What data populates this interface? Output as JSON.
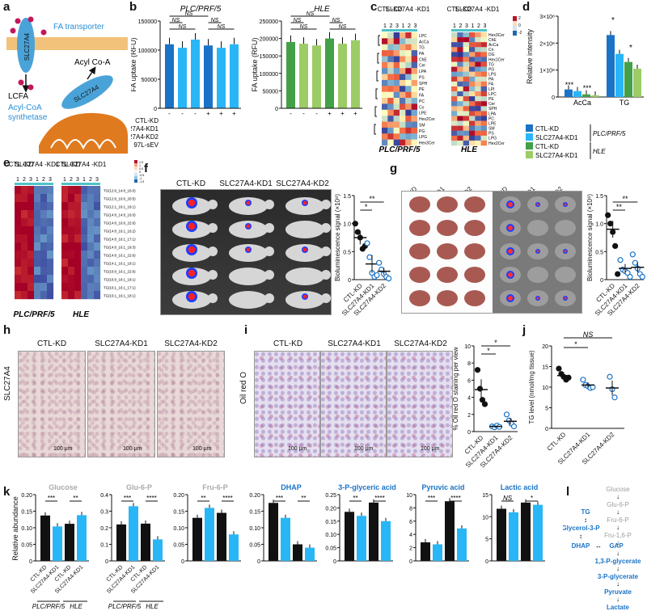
{
  "panel_labels": [
    "a",
    "b",
    "c",
    "d",
    "e",
    "f",
    "g",
    "h",
    "i",
    "j",
    "k",
    "l"
  ],
  "panel_a": {
    "fa_transporter": "FA transporter",
    "slc_top": "SLC27A4",
    "lcfa": "LCFA",
    "acyl_coa_synthetase": "Acyl-CoA synthetase",
    "slc_bottom": "SLC27A4",
    "acyl_coa": "Acyl Co-A",
    "colors": {
      "membrane": "#e8a64a",
      "protein": "#4aa3d8",
      "mito": "#e07a1f",
      "fa": "#c2185b"
    }
  },
  "sig": {
    "ns": "NS",
    "one": "*",
    "two": "**",
    "three": "***",
    "four": "****"
  },
  "panel_b": {
    "ylabel": "FA uptake (RFU)",
    "row_labels": [
      "CTL-KD",
      "SLC27A4-KD1",
      "SLC27A4-KD2",
      "97L-sEV"
    ],
    "sev": [
      "-",
      "-",
      "-",
      "+",
      "+",
      "+"
    ],
    "charts": [
      {
        "title": "PLC/PRF/5",
        "ylim": [
          0,
          150000
        ],
        "ticks": [
          "0",
          "50000",
          "100000",
          "150000"
        ],
        "values": [
          110000,
          104000,
          118000,
          108000,
          104000,
          110000
        ],
        "colors": [
          "#1a73c7",
          "#29b6f6",
          "#29b6f6",
          "#1a73c7",
          "#29b6f6",
          "#29b6f6"
        ]
      },
      {
        "title": "HLE",
        "ylim": [
          0,
          250000
        ],
        "ticks": [
          "0",
          "50000",
          "100000",
          "150000",
          "200000",
          "250000"
        ],
        "values": [
          190000,
          185000,
          180000,
          200000,
          185000,
          195000
        ],
        "colors": [
          "#43a047",
          "#9ccc65",
          "#9ccc65",
          "#43a047",
          "#9ccc65",
          "#9ccc65"
        ]
      }
    ]
  },
  "panel_c": {
    "col_left": "CTL -KD",
    "col_right": "SLC27A4 -KD1",
    "reps": [
      "1",
      "2",
      "3",
      "1",
      "2",
      "3"
    ],
    "left_cell": "PLC/PRF/5",
    "right_cell": "HLE",
    "left_rows": [
      "LPC",
      "AcCa",
      "TG",
      "PA",
      "ChE",
      "Cer",
      "LPA",
      "PS",
      "SPH",
      "PE",
      "FA",
      "PC",
      "Co",
      "LPE",
      "Hex2Cer",
      "SM",
      "PG",
      "LPG",
      "Hex3Cer"
    ],
    "right_rows": [
      "Hex3Cer",
      "ChE",
      "AcCa",
      "Cn",
      "DG",
      "Hex1Cer",
      "TG",
      "PG",
      "LPS",
      "PA",
      "FA",
      "LPI",
      "LPC",
      "PE",
      "Cer",
      "SPH",
      "LPA",
      "PC",
      "LPE",
      "SM",
      "PS",
      "LPG",
      "Hex2Cer"
    ],
    "scale": [
      "2",
      "0",
      "-2"
    ]
  },
  "panel_d": {
    "ylabel": "Relative intensity",
    "ticks": [
      "0",
      "1×10⁸",
      "2×10⁸",
      "3×10⁸"
    ],
    "groups": [
      "AcCa",
      "TG"
    ],
    "values": [
      [
        0.28,
        0.22,
        0.1,
        0.06
      ],
      [
        2.3,
        1.6,
        1.3,
        1.05
      ]
    ],
    "ylim": [
      0,
      3
    ],
    "colors": [
      "#1a73c7",
      "#29b6f6",
      "#43a047",
      "#9ccc65"
    ],
    "legend": [
      "CTL-KD",
      "SLC27A4-KD1",
      "CTL-KD",
      "SLC27A4-KD1"
    ],
    "legend_group1": "PLC/PRF/5",
    "legend_group2": "HLE"
  },
  "panel_e": {
    "col_left": "CTL -KD",
    "col_right": "SLC27A4 -KD1",
    "reps": [
      "1",
      "2",
      "3",
      "1",
      "2",
      "3"
    ],
    "rows": [
      "TG(12:0_14:0_16:0)",
      "TG(12:0_16:0_20:5)",
      "TG(12:1_16:1_18:1)",
      "TG(14:0_14:0_16:0)",
      "TG(14:0_16:0_22:6)",
      "TG(14:0_16:1_16:2)",
      "TG(14:0_16:1_17:1)",
      "TG(14:0_16:1_18:3)",
      "TG(14:0_16:1_22:6)",
      "TG(14:1_16:1_18:1)",
      "TG(16:0_16:1_22:6)",
      "TG(16:0_18:1_18:1)",
      "TG(16:1_16:1_17:1)",
      "TG(16:1_16:1_18:1)"
    ],
    "left_cell": "PLC/PRF/5",
    "right_cell": "HLE",
    "scale": [
      "1.5",
      "1",
      "0.5",
      "0",
      "-0.5",
      "-1",
      "-1.5"
    ]
  },
  "panel_f": {
    "groups": [
      "CTL-KD",
      "SLC27A4-KD1",
      "SLC27A4-KD2"
    ],
    "ylabel": "Bioluminescence signal (×10⁸)",
    "ticks": [
      "0",
      "0.5",
      "1.0",
      "1.5"
    ],
    "ylim": [
      0,
      1.5
    ],
    "means": [
      0.75,
      0.28,
      0.15
    ],
    "sems": [
      0.12,
      0.16,
      0.06
    ],
    "points": [
      [
        1.0,
        0.85,
        0.75,
        0.55,
        0.6
      ],
      [
        0.65,
        0.4,
        0.12,
        0.05,
        0.08
      ],
      [
        0.3,
        0.18,
        0.1,
        0.05,
        0.02
      ]
    ]
  },
  "panel_g": {
    "groups": [
      "CTL-KD",
      "SLC27A4-KD1",
      "SLC27A4-KD2"
    ],
    "ylabel": "Bioluminescence signal (×10⁸)",
    "ticks": [
      "0",
      "0.5",
      "1.0",
      "1.5"
    ],
    "ylim": [
      0,
      1.5
    ],
    "means": [
      0.9,
      0.2,
      0.22
    ],
    "sems": [
      0.15,
      0.08,
      0.09
    ],
    "points": [
      [
        1.15,
        1.0,
        0.85,
        0.6,
        0.1
      ],
      [
        0.35,
        0.18,
        0.15,
        0.12,
        0.05
      ],
      [
        0.45,
        0.3,
        0.2,
        0.1,
        0.05
      ]
    ]
  },
  "panel_h": {
    "stain": "SLC27A4",
    "titles": [
      "CTL-KD",
      "SLC27A4-KD1",
      "SLC27A4-KD2"
    ],
    "scales": [
      "100 μm",
      "100 μm",
      "100 μm"
    ]
  },
  "panel_i": {
    "stain": "Oil red O",
    "titles": [
      "CTL-KD",
      "SLC27A4-KD1",
      "SLC27A4-KD2"
    ],
    "scales": [
      "100 μm",
      "100 μm",
      "100 μm"
    ],
    "ylabel": "% Oil red O staining per view",
    "ticks": [
      "0",
      "2",
      "4",
      "6",
      "8",
      "10"
    ],
    "ylim": [
      0,
      10
    ],
    "groups": [
      "CTL-KD",
      "SLC27A4-KD1",
      "SLC27A4-KD2"
    ],
    "means": [
      4.9,
      0.6,
      1.2
    ],
    "sems": [
      1.2,
      0.1,
      0.4
    ],
    "points": [
      [
        7.2,
        5.0,
        3.7,
        3.2
      ],
      [
        0.6,
        0.5,
        0.7,
        0.55
      ],
      [
        2.0,
        1.3,
        0.9,
        0.6
      ]
    ]
  },
  "panel_j": {
    "ylabel": "TG level (nmol/mg tissue)",
    "ticks": [
      "0",
      "5",
      "10",
      "15",
      "20"
    ],
    "ylim": [
      0,
      20
    ],
    "groups": [
      "CTL-KD",
      "SLC27A4-KD1",
      "SLC27A4-KD2"
    ],
    "means": [
      12.8,
      10.5,
      9.8
    ],
    "sems": [
      0.8,
      0.7,
      1.8
    ],
    "points": [
      [
        14.5,
        13.2,
        12.5,
        11.8,
        12.3
      ],
      [
        11.8,
        10.5,
        10.2,
        9.8,
        10.0
      ],
      [
        12.5,
        9.5,
        7.5
      ]
    ]
  },
  "panel_k": {
    "ylabel": "Relative abundance",
    "xlabels": [
      "CTL-KD",
      "SLC27A4-KD1",
      "CTL-KD",
      "SLC27A4-KD1"
    ],
    "cell1": "PLC/PRF/5",
    "cell2": "HLE",
    "colors": [
      "#111111",
      "#29b6f6",
      "#111111",
      "#29b6f6"
    ],
    "charts": [
      {
        "title": "Glucose",
        "title_color": "#aaaaaa",
        "ylim": [
          0,
          0.2
        ],
        "ticks": [
          "0",
          "0.05",
          "0.10",
          "0.15",
          "0.20"
        ],
        "values": [
          0.137,
          0.104,
          0.112,
          0.138
        ],
        "sig": [
          "***",
          "**"
        ]
      },
      {
        "title": "Glu-6-P",
        "title_color": "#aaaaaa",
        "ylim": [
          0,
          0.4
        ],
        "ticks": [
          "0",
          "0.1",
          "0.2",
          "0.3",
          "0.4"
        ],
        "values": [
          0.22,
          0.33,
          0.225,
          0.13
        ],
        "sig": [
          "***",
          "****"
        ]
      },
      {
        "title": "Fru-6-P",
        "title_color": "#aaaaaa",
        "ylim": [
          0,
          0.2
        ],
        "ticks": [
          "0",
          "0.05",
          "0.10",
          "0.15",
          "0.20"
        ],
        "values": [
          0.13,
          0.16,
          0.145,
          0.08
        ],
        "sig": [
          "**",
          "****"
        ]
      },
      {
        "title": "DHAP",
        "title_color": "#1a73c7",
        "ylim": [
          0,
          0.2
        ],
        "ticks": [
          "0",
          "0.05",
          "0.10",
          "0.15",
          "0.20"
        ],
        "values": [
          0.175,
          0.13,
          0.05,
          0.04
        ],
        "sig": [
          "***",
          "**"
        ]
      },
      {
        "title": "3-P-glyceric acid",
        "title_color": "#1a73c7",
        "ylim": [
          0,
          0.25
        ],
        "ticks": [
          "0",
          "0.05",
          "0.10",
          "0.15",
          "0.20",
          "0.25"
        ],
        "values": [
          0.185,
          0.17,
          0.22,
          0.15
        ],
        "sig": [
          "**",
          "****"
        ]
      },
      {
        "title": "Pyruvic acid",
        "title_color": "#1a73c7",
        "ylim": [
          0,
          10
        ],
        "ticks": [
          "0",
          "2",
          "4",
          "6",
          "8",
          "10"
        ],
        "values": [
          2.8,
          2.5,
          9.0,
          4.9
        ],
        "sig": [
          "***",
          "****"
        ]
      },
      {
        "title": "Lactic acid",
        "title_color": "#1a73c7",
        "ylim": [
          0,
          15
        ],
        "ticks": [
          "0",
          "5",
          "10",
          "15"
        ],
        "values": [
          11.8,
          11.0,
          13.2,
          12.7
        ],
        "sig": [
          "NS",
          "*"
        ]
      }
    ]
  },
  "panel_l": {
    "grey": [
      "Glucose",
      "Glu-6-P",
      "Fru-6-P",
      "Fru-1,6-P"
    ],
    "blue": [
      "1,3-P-glycerate",
      "3-P-glycerate",
      "Pyruvate",
      "Lactate"
    ],
    "tg": "TG",
    "g3p": "Glycerol-3-P",
    "dhap": "DHAP",
    "gap": "GAP",
    "arrow": "↔"
  }
}
